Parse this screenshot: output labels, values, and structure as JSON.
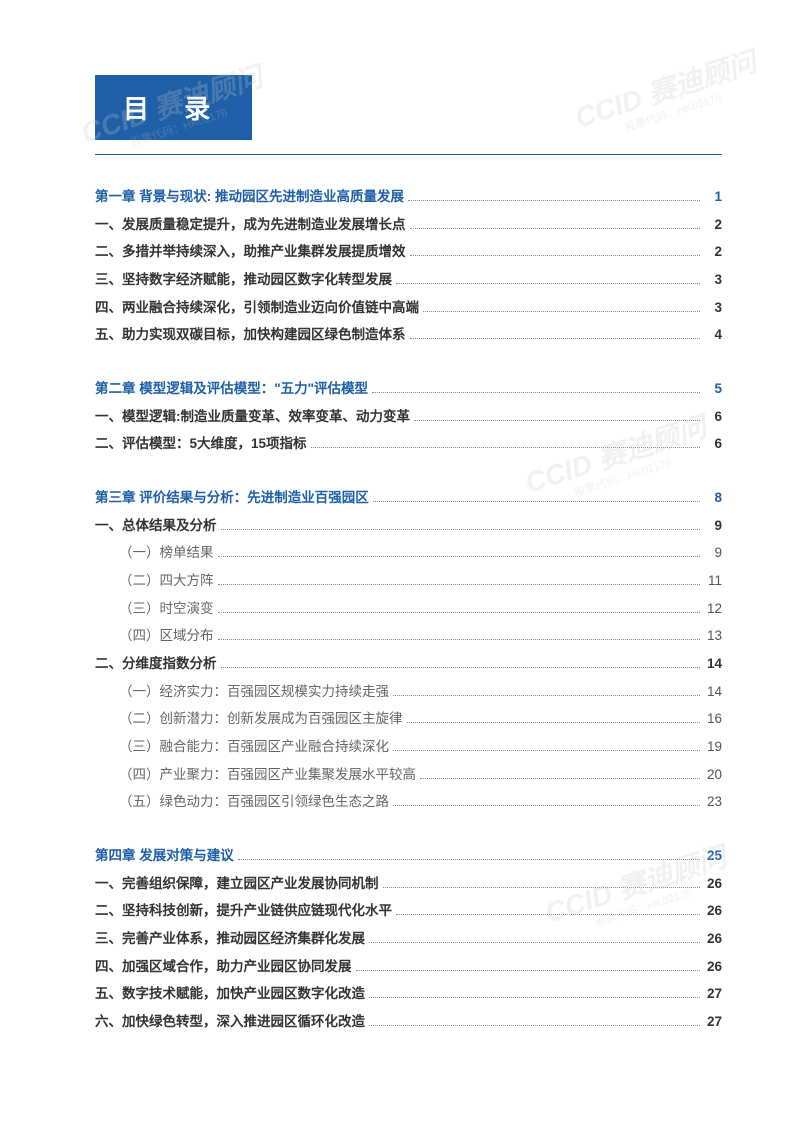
{
  "page": {
    "title": "目 录",
    "title_bg": "#1e5fa8",
    "title_color": "#ffffff",
    "underline_color": "#1e5fa8"
  },
  "watermark": {
    "text": "CCID 赛迪顾问",
    "sub": "股票代码：HK02176"
  },
  "toc": [
    {
      "title": "第一章 背景与现状: 推动园区先进制造业高质量发展",
      "page": "1",
      "items": [
        {
          "label": "一、发展质量稳定提升，成为先进制造业发展增长点",
          "page": "2"
        },
        {
          "label": "二、多措并举持续深入，助推产业集群发展提质增效",
          "page": "2"
        },
        {
          "label": "三、坚持数字经济赋能，推动园区数字化转型发展",
          "page": "3"
        },
        {
          "label": "四、两业融合持续深化，引领制造业迈向价值链中高端",
          "page": "3"
        },
        {
          "label": "五、助力实现双碳目标，加快构建园区绿色制造体系",
          "page": "4"
        }
      ]
    },
    {
      "title": "第二章 模型逻辑及评估模型：\"五力\"评估模型",
      "page": "5",
      "items": [
        {
          "label": "一、模型逻辑:制造业质量变革、效率变革、动力变革",
          "page": "6"
        },
        {
          "label": "二、评估模型：5大维度，15项指标",
          "page": "6"
        }
      ]
    },
    {
      "title": "第三章 评价结果与分析：先进制造业百强园区",
      "page": "8",
      "items": [
        {
          "label": "一、总体结果及分析",
          "page": "9",
          "sub": [
            {
              "label": "（一）榜单结果",
              "page": "9"
            },
            {
              "label": "（二）四大方阵",
              "page": "11"
            },
            {
              "label": "（三）时空演变",
              "page": "12"
            },
            {
              "label": "（四）区域分布",
              "page": "13"
            }
          ]
        },
        {
          "label": "二、分维度指数分析",
          "page": "14",
          "sub": [
            {
              "label": "（一）经济实力：百强园区规模实力持续走强",
              "page": "14"
            },
            {
              "label": "（二）创新潜力：创新发展成为百强园区主旋律",
              "page": "16"
            },
            {
              "label": "（三）融合能力：百强园区产业融合持续深化",
              "page": "19"
            },
            {
              "label": "（四）产业聚力：百强园区产业集聚发展水平较高",
              "page": "20"
            },
            {
              "label": "（五）绿色动力：百强园区引领绿色生态之路",
              "page": "23"
            }
          ]
        }
      ]
    },
    {
      "title": "第四章 发展对策与建议",
      "page": "25",
      "items": [
        {
          "label": "一、完善组织保障，建立园区产业发展协同机制",
          "page": "26"
        },
        {
          "label": "二、坚持科技创新，提升产业链供应链现代化水平",
          "page": "26"
        },
        {
          "label": "三、完善产业体系，推动园区经济集群化发展",
          "page": "26"
        },
        {
          "label": "四、加强区域合作，助力产业园区协同发展",
          "page": "26"
        },
        {
          "label": "五、数字技术赋能，加快产业园区数字化改造",
          "page": "27"
        },
        {
          "label": "六、加快绿色转型，深入推进园区循环化改造",
          "page": "27"
        }
      ]
    }
  ]
}
